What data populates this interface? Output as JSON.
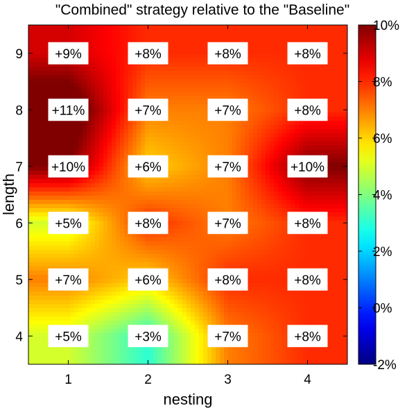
{
  "chart_data": {
    "type": "heatmap",
    "title": "\"Combined\" strategy relative to the \"Baseline\"",
    "xlabel": "nesting",
    "ylabel": "length",
    "x": [
      1,
      2,
      3,
      4
    ],
    "y": [
      4,
      5,
      6,
      7,
      8,
      9
    ],
    "values": [
      [
        5,
        3,
        7,
        8
      ],
      [
        7,
        6,
        8,
        8
      ],
      [
        5,
        8,
        7,
        8
      ],
      [
        10,
        6,
        7,
        10
      ],
      [
        11,
        7,
        7,
        8
      ],
      [
        9,
        8,
        8,
        8
      ]
    ],
    "cell_labels": [
      [
        "+5%",
        "+3%",
        "+7%",
        "+8%"
      ],
      [
        "+7%",
        "+6%",
        "+8%",
        "+8%"
      ],
      [
        "+5%",
        "+8%",
        "+7%",
        "+8%"
      ],
      [
        "+10%",
        "+6%",
        "+7%",
        "+10%"
      ],
      [
        "+11%",
        "+7%",
        "+7%",
        "+8%"
      ],
      [
        "+9%",
        "+8%",
        "+8%",
        "+8%"
      ]
    ],
    "colorbar": {
      "range": [
        -2,
        10
      ],
      "ticks": [
        -2,
        0,
        2,
        4,
        6,
        8,
        10
      ],
      "tick_labels": [
        "-2%",
        "0%",
        "2%",
        "4%",
        "6%",
        "8%",
        "10%"
      ],
      "colormap": "jet"
    },
    "xlim": [
      0.5,
      4.5
    ],
    "ylim": [
      3.5,
      9.5
    ],
    "x_tick_labels": [
      "1",
      "2",
      "3",
      "4"
    ],
    "y_tick_labels": [
      "4",
      "5",
      "6",
      "7",
      "8",
      "9"
    ]
  }
}
